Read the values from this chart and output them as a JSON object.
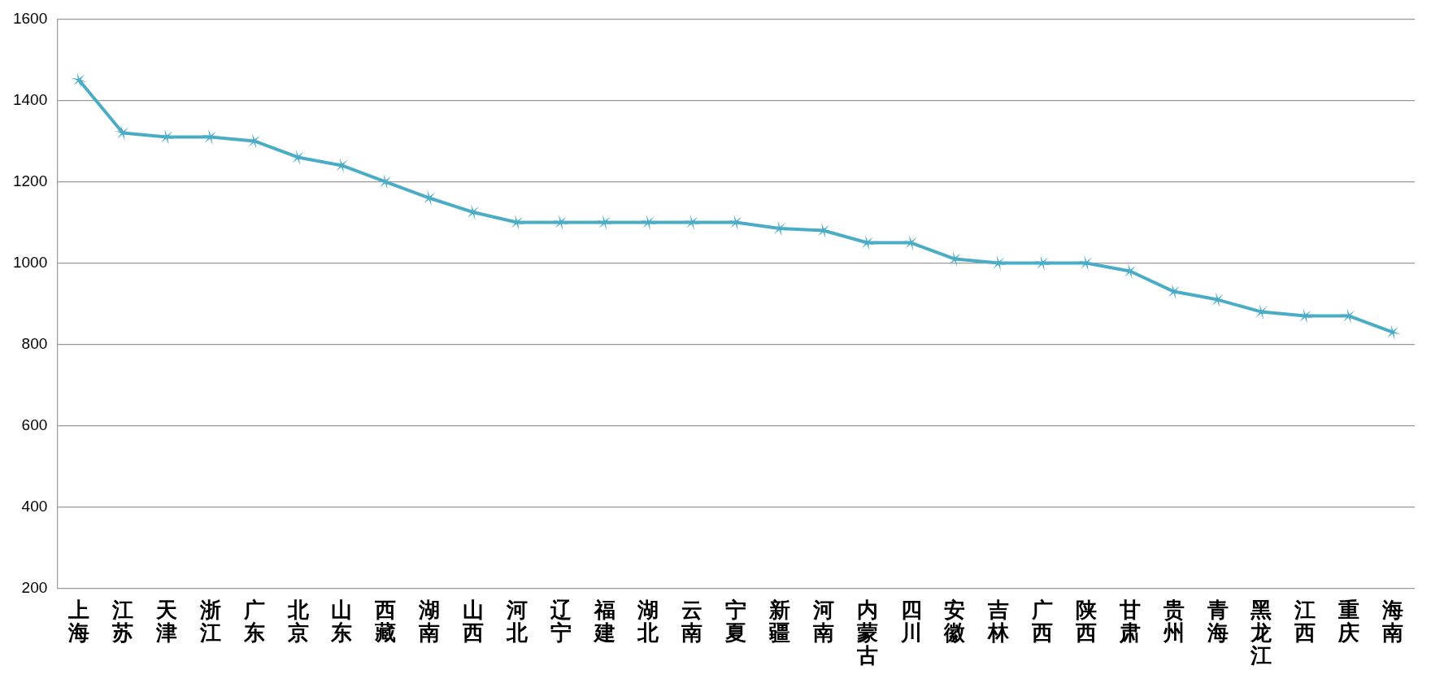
{
  "chart_data": {
    "type": "line",
    "categories": [
      "上海",
      "江苏",
      "天津",
      "浙江",
      "广东",
      "北京",
      "山东",
      "西藏",
      "湖南",
      "山西",
      "河北",
      "辽宁",
      "福建",
      "湖北",
      "云南",
      "宁夏",
      "新疆",
      "河南",
      "内蒙古",
      "四川",
      "安徽",
      "吉林",
      "广西",
      "陕西",
      "甘肃",
      "贵州",
      "青海",
      "黑龙江",
      "江西",
      "重庆",
      "海南"
    ],
    "series": [
      {
        "color": "#4bacc6",
        "values": [
          1450,
          1320,
          1310,
          1310,
          1300,
          1260,
          1240,
          1200,
          1160,
          1125,
          1100,
          1100,
          1100,
          1100,
          1100,
          1100,
          1085,
          1080,
          1050,
          1050,
          1010,
          1000,
          1000,
          1000,
          980,
          930,
          910,
          880,
          870,
          870,
          830
        ]
      }
    ],
    "ylim": [
      200,
      1600
    ],
    "yticks": [
      200,
      400,
      600,
      800,
      1000,
      1200,
      1400,
      1600
    ],
    "grid": "y",
    "legend": false,
    "marker": "cross",
    "line_style": "solid"
  }
}
